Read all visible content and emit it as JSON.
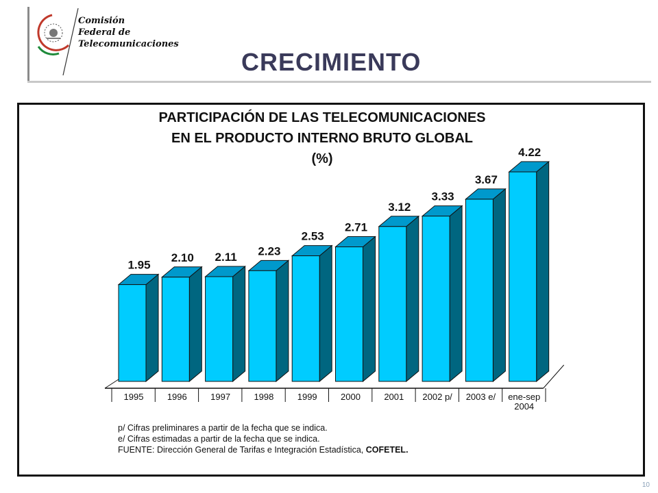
{
  "logo": {
    "lines": [
      "Comisión",
      "Federal de",
      "Telecomunicaciones"
    ]
  },
  "page": {
    "title": "CRECIMIENTO",
    "number": "10"
  },
  "notes": {
    "preliminary": "p/ Cifras preliminares a partir de la fecha que se indica.",
    "estimated": "e/ Cifras estimadas a partir de la fecha que se indica.",
    "source_prefix": "FUENTE: Dirección General de Tarifas e Integración Estadística, ",
    "source_org": "COFETEL."
  },
  "chart_data": {
    "type": "bar",
    "title_lines": [
      "PARTICIPACIÓN DE LAS TELECOMUNICACIONES",
      "EN EL PRODUCTO INTERNO BRUTO GLOBAL",
      "(%)"
    ],
    "categories": [
      "1995",
      "1996",
      "1997",
      "1998",
      "1999",
      "2000",
      "2001",
      "2002 p/",
      "2003 e/",
      "ene-sep 2004"
    ],
    "category_lines": [
      [
        "1995"
      ],
      [
        "1996"
      ],
      [
        "1997"
      ],
      [
        "1998"
      ],
      [
        "1999"
      ],
      [
        "2000"
      ],
      [
        "2001"
      ],
      [
        "2002 p/"
      ],
      [
        "2003 e/"
      ],
      [
        "ene-sep",
        "2004"
      ]
    ],
    "values": [
      1.95,
      2.1,
      2.11,
      2.23,
      2.53,
      2.71,
      3.12,
      3.33,
      3.67,
      4.22
    ],
    "value_labels": [
      "1.95",
      "2.10",
      "2.11",
      "2.23",
      "2.53",
      "2.71",
      "3.12",
      "3.33",
      "3.67",
      "4.22"
    ],
    "style": "3d-bar",
    "colors": {
      "front": "#00ccff",
      "side": "#006680",
      "top": "#0099cc"
    }
  }
}
